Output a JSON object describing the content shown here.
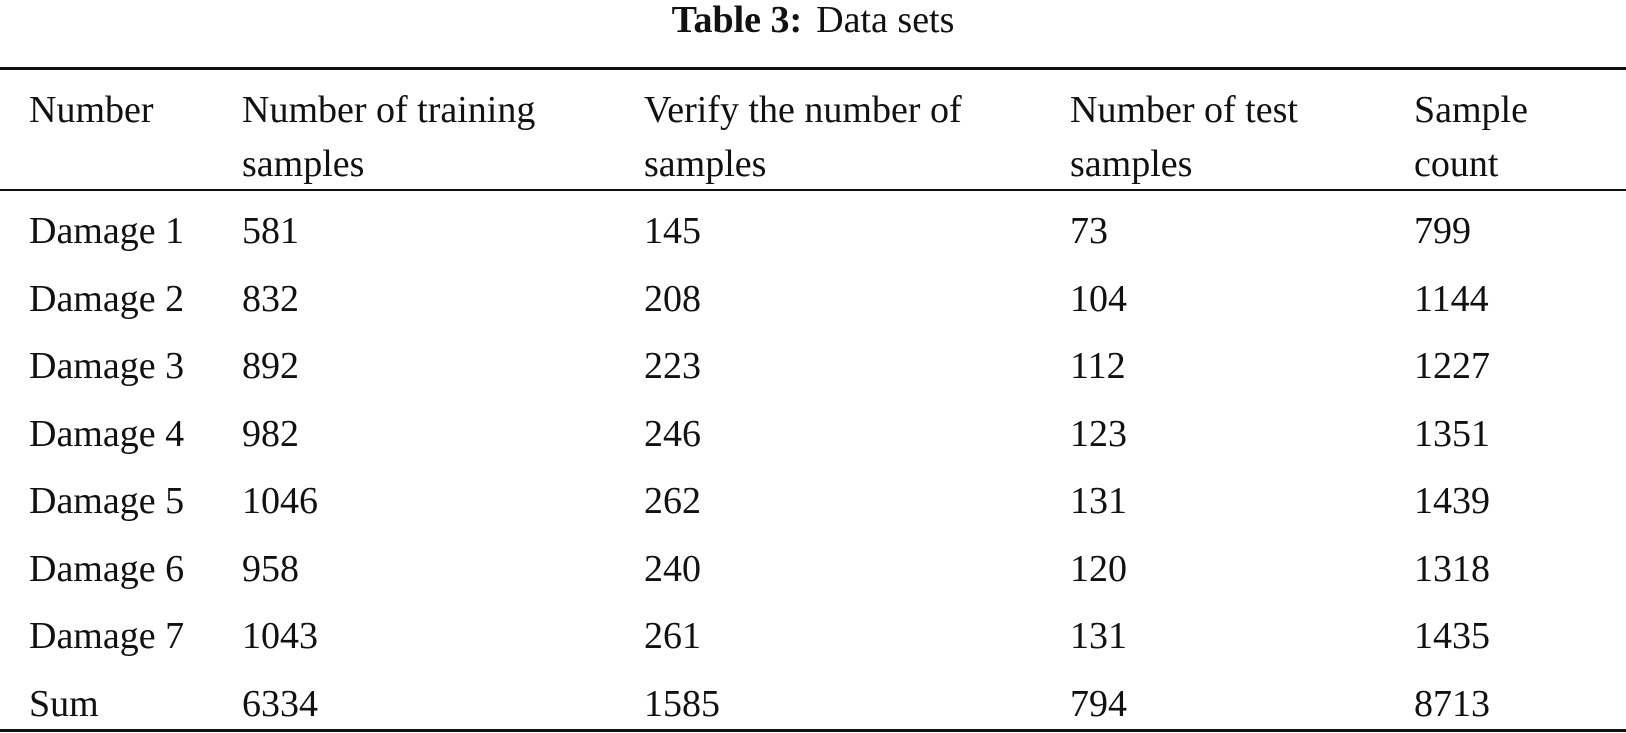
{
  "caption": {
    "label": "Table 3:",
    "text": "Data sets"
  },
  "table": {
    "header": [
      "Number",
      "Number of training samples",
      "Verify the number of samples",
      "Number of test samples",
      "Sample count"
    ],
    "rows": [
      [
        "Damage 1",
        581,
        145,
        73,
        799
      ],
      [
        "Damage 2",
        832,
        208,
        104,
        1144
      ],
      [
        "Damage 3",
        892,
        223,
        112,
        1227
      ],
      [
        "Damage 4",
        982,
        246,
        123,
        1351
      ],
      [
        "Damage 5",
        1046,
        262,
        131,
        1439
      ],
      [
        "Damage 6",
        958,
        240,
        120,
        1318
      ],
      [
        "Damage 7",
        1043,
        261,
        131,
        1435
      ],
      [
        "Sum",
        6334,
        1585,
        794,
        8713
      ]
    ]
  }
}
